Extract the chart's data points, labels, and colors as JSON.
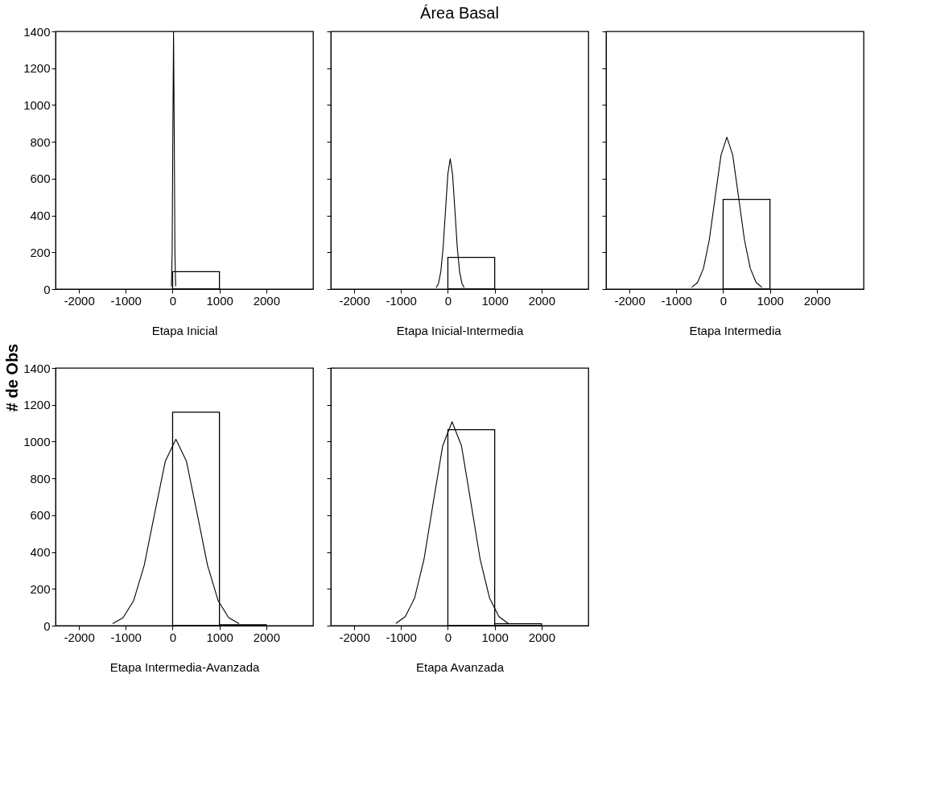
{
  "chart_data": [
    {
      "type": "histogram",
      "ylabel": "# de Obs",
      "xlabel": "Etapa Inicial",
      "xlim": [
        -2500,
        3000
      ],
      "xticks": [
        -2000,
        -1000,
        0,
        1000,
        2000
      ],
      "ylim": [
        0,
        1400
      ],
      "yticks": [
        0,
        200,
        400,
        600,
        800,
        1000,
        1200,
        1400
      ],
      "series": [
        {
          "type": "histogram",
          "color": "#000000",
          "bins": [
            0,
            1000
          ],
          "values": [
            95
          ]
        },
        {
          "type": "line",
          "color": "#000000",
          "x": [
            -25,
            -10,
            5,
            20,
            35,
            50,
            65
          ],
          "values": [
            15,
            190,
            850,
            1400,
            850,
            190,
            15
          ]
        }
      ]
    },
    {
      "type": "histogram",
      "title": "Área Basal",
      "xlabel": "Etapa Inicial-Intermedia",
      "xlim": [
        -2500,
        3000
      ],
      "xticks": [
        -2000,
        -1000,
        0,
        1000,
        2000
      ],
      "ylim": [
        0,
        1400
      ],
      "yticks": [
        0,
        200,
        400,
        600,
        800,
        1000,
        1200,
        1400
      ],
      "tick_labels": "x",
      "series": [
        {
          "type": "histogram",
          "color": "#000000",
          "bins": [
            0,
            1000
          ],
          "values": [
            172
          ]
        },
        {
          "type": "line",
          "color": "#000000",
          "x": [
            -250,
            -200,
            -150,
            -100,
            -50,
            0,
            50,
            100,
            150,
            200,
            250,
            300,
            350
          ],
          "values": [
            8,
            31,
            96,
            230,
            430,
            625,
            708,
            625,
            430,
            230,
            96,
            31,
            8
          ]
        }
      ]
    },
    {
      "type": "histogram",
      "xlabel": "Etapa Intermedia",
      "xlim": [
        -2500,
        3000
      ],
      "xticks": [
        -2000,
        -1000,
        0,
        1000,
        2000
      ],
      "ylim": [
        0,
        1400
      ],
      "yticks": [
        0,
        200,
        400,
        600,
        800,
        1000,
        1200,
        1400
      ],
      "tick_labels": "x",
      "series": [
        {
          "type": "histogram",
          "color": "#000000",
          "bins": [
            0,
            1000
          ],
          "values": [
            487
          ]
        },
        {
          "type": "line",
          "color": "#000000",
          "x": [
            -670,
            -545,
            -420,
            -295,
            -170,
            -45,
            80,
            205,
            330,
            455,
            580,
            705,
            830
          ],
          "values": [
            9,
            36,
            112,
            268,
            500,
            728,
            825,
            728,
            500,
            268,
            112,
            36,
            9
          ]
        }
      ]
    },
    {
      "type": "histogram",
      "xlabel": "Etapa Intermedia-Avanzada",
      "xlim": [
        -2500,
        3000
      ],
      "xticks": [
        -2000,
        -1000,
        0,
        1000,
        2000
      ],
      "ylim": [
        0,
        1400
      ],
      "yticks": [
        0,
        200,
        400,
        600,
        800,
        1000,
        1200,
        1400
      ],
      "series": [
        {
          "type": "histogram",
          "color": "#000000",
          "bins": [
            0,
            1000,
            2000
          ],
          "values": [
            1160,
            5
          ]
        },
        {
          "type": "line",
          "color": "#000000",
          "x": [
            -1280,
            -1055,
            -830,
            -605,
            -380,
            -155,
            70,
            295,
            520,
            745,
            970,
            1195,
            1420
          ],
          "values": [
            11,
            44,
            137,
            329,
            614,
            894,
            1013,
            894,
            614,
            329,
            137,
            44,
            11
          ]
        }
      ]
    },
    {
      "type": "histogram",
      "xlabel": "Etapa Avanzada",
      "xlim": [
        -2500,
        3000
      ],
      "xticks": [
        -2000,
        -1000,
        0,
        1000,
        2000
      ],
      "ylim": [
        0,
        1400
      ],
      "yticks": [
        0,
        200,
        400,
        600,
        800,
        1000,
        1200,
        1400
      ],
      "tick_labels": "x",
      "series": [
        {
          "type": "histogram",
          "color": "#000000",
          "bins": [
            0,
            1000,
            2000
          ],
          "values": [
            1065,
            10
          ]
        },
        {
          "type": "line",
          "color": "#000000",
          "x": [
            -1110,
            -910,
            -710,
            -510,
            -310,
            -110,
            90,
            290,
            490,
            690,
            890,
            1090,
            1290
          ],
          "values": [
            12,
            49,
            150,
            360,
            672,
            978,
            1108,
            978,
            672,
            360,
            150,
            49,
            12
          ]
        }
      ]
    }
  ]
}
